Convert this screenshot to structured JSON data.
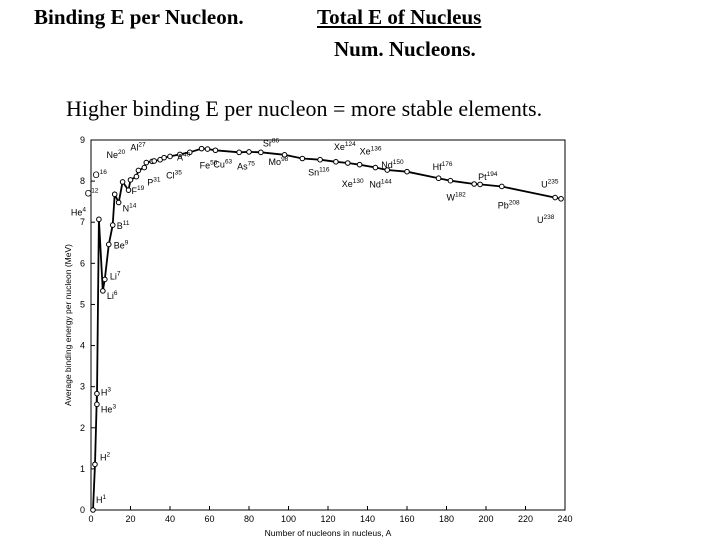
{
  "header": {
    "title_left": "Binding E per Nucleon.",
    "title_right_numerator": "Total E of Nucleus",
    "title_right_denominator": "Num. Nucleons."
  },
  "subtitle": "Higher binding E per nucleon = more stable elements.",
  "chart_data": {
    "type": "line",
    "xlabel": "Number of nucleons in nucleus, A",
    "ylabel": "Average binding energy per nucleon (MeV)",
    "xlim": [
      0,
      240
    ],
    "ylim": [
      0,
      9
    ],
    "xticks": [
      0,
      20,
      40,
      60,
      80,
      100,
      120,
      140,
      160,
      180,
      200,
      220,
      240
    ],
    "yticks": [
      0,
      1,
      2,
      3,
      4,
      5,
      6,
      7,
      8,
      9
    ],
    "grid": false,
    "series": [
      {
        "points": [
          {
            "x": 1,
            "y": 0
          },
          {
            "x": 2,
            "y": 1.11
          },
          {
            "x": 3,
            "y": 2.83
          },
          {
            "x": 3,
            "y": 2.57
          },
          {
            "x": 4,
            "y": 7.07
          },
          {
            "x": 6,
            "y": 5.33
          },
          {
            "x": 7,
            "y": 5.61
          },
          {
            "x": 9,
            "y": 6.46
          },
          {
            "x": 11,
            "y": 6.93
          },
          {
            "x": 12,
            "y": 7.68
          },
          {
            "x": 14,
            "y": 7.48
          },
          {
            "x": 16,
            "y": 7.98
          },
          {
            "x": 19,
            "y": 7.78
          },
          {
            "x": 20,
            "y": 8.03
          },
          {
            "x": 23,
            "y": 8.11
          },
          {
            "x": 24,
            "y": 8.26
          },
          {
            "x": 27,
            "y": 8.33
          },
          {
            "x": 28,
            "y": 8.45
          },
          {
            "x": 31,
            "y": 8.48
          },
          {
            "x": 32,
            "y": 8.49
          },
          {
            "x": 35,
            "y": 8.52
          },
          {
            "x": 37,
            "y": 8.57
          },
          {
            "x": 40,
            "y": 8.6
          },
          {
            "x": 45,
            "y": 8.65
          },
          {
            "x": 50,
            "y": 8.7
          },
          {
            "x": 56,
            "y": 8.79
          },
          {
            "x": 59,
            "y": 8.78
          },
          {
            "x": 63,
            "y": 8.75
          },
          {
            "x": 75,
            "y": 8.7
          },
          {
            "x": 80,
            "y": 8.71
          },
          {
            "x": 86,
            "y": 8.7
          },
          {
            "x": 98,
            "y": 8.64
          },
          {
            "x": 107,
            "y": 8.55
          },
          {
            "x": 116,
            "y": 8.52
          },
          {
            "x": 124,
            "y": 8.47
          },
          {
            "x": 130,
            "y": 8.44
          },
          {
            "x": 136,
            "y": 8.4
          },
          {
            "x": 144,
            "y": 8.33
          },
          {
            "x": 150,
            "y": 8.27
          },
          {
            "x": 160,
            "y": 8.23
          },
          {
            "x": 176,
            "y": 8.07
          },
          {
            "x": 182,
            "y": 8.01
          },
          {
            "x": 194,
            "y": 7.93
          },
          {
            "x": 197,
            "y": 7.92
          },
          {
            "x": 208,
            "y": 7.87
          },
          {
            "x": 235,
            "y": 7.6
          },
          {
            "x": 238,
            "y": 7.57
          }
        ]
      }
    ],
    "annotations": [
      {
        "el": "H",
        "a": "1",
        "x": 1,
        "y": 0,
        "dx": 3,
        "dy": -7
      },
      {
        "el": "H",
        "a": "2",
        "x": 2,
        "y": 1.11,
        "dx": 5,
        "dy": -4
      },
      {
        "el": "H",
        "a": "3",
        "x": 3,
        "y": 2.83,
        "dx": 4,
        "dy": 2
      },
      {
        "el": "He",
        "a": "3",
        "x": 3,
        "y": 2.57,
        "dx": 4,
        "dy": 8
      },
      {
        "el": "He",
        "a": "4",
        "x": 4,
        "y": 7.07,
        "dx": -28,
        "dy": -4
      },
      {
        "el": "Li",
        "a": "6",
        "x": 6,
        "y": 5.33,
        "dx": 4,
        "dy": 8
      },
      {
        "el": "Li",
        "a": "7",
        "x": 7,
        "y": 5.61,
        "dx": 5,
        "dy": 0
      },
      {
        "el": "Be",
        "a": "9",
        "x": 9,
        "y": 6.46,
        "dx": 5,
        "dy": 4
      },
      {
        "el": "B",
        "a": "11",
        "x": 11,
        "y": 6.93,
        "dx": 4,
        "dy": 4
      },
      {
        "el": "C",
        "a": "12",
        "x": 12,
        "y": 7.68,
        "dx": -30,
        "dy": 2
      },
      {
        "el": "N",
        "a": "14",
        "x": 14,
        "y": 7.48,
        "dx": 4,
        "dy": 9
      },
      {
        "el": "O",
        "a": "16",
        "x": 16,
        "y": 7.98,
        "dx": -30,
        "dy": -4
      },
      {
        "el": "F",
        "a": "19",
        "x": 19,
        "y": 7.78,
        "dx": 3,
        "dy": 4
      },
      {
        "el": "Ne",
        "a": "20",
        "x": 20,
        "y": 8.03,
        "dx": -24,
        "dy": -22
      },
      {
        "el": "Al",
        "a": "27",
        "x": 27,
        "y": 8.33,
        "dx": -14,
        "dy": -17
      },
      {
        "el": "P",
        "a": "31",
        "x": 31,
        "y": 8.48,
        "dx": -5,
        "dy": 24
      },
      {
        "el": "Cl",
        "a": "35",
        "x": 35,
        "y": 8.52,
        "dx": 6,
        "dy": 19
      },
      {
        "el": "A",
        "a": "40",
        "x": 40,
        "y": 8.6,
        "dx": 7,
        "dy": 4
      },
      {
        "el": "Fe",
        "a": "56",
        "x": 56,
        "y": 8.79,
        "dx": -2,
        "dy": 20
      },
      {
        "el": "Cu",
        "a": "63",
        "x": 63,
        "y": 8.75,
        "dx": -2,
        "dy": 17
      },
      {
        "el": "As",
        "a": "75",
        "x": 75,
        "y": 8.7,
        "dx": -2,
        "dy": 17
      },
      {
        "el": "Sr",
        "a": "86",
        "x": 86,
        "y": 8.7,
        "dx": 2,
        "dy": -6
      },
      {
        "el": "Mo",
        "a": "98",
        "x": 98,
        "y": 8.64,
        "dx": -16,
        "dy": 10
      },
      {
        "el": "Sn",
        "a": "116",
        "x": 116,
        "y": 8.52,
        "dx": -12,
        "dy": 16
      },
      {
        "el": "Xe",
        "a": "124",
        "x": 124,
        "y": 8.47,
        "dx": -2,
        "dy": -12
      },
      {
        "el": "Xe",
        "a": "130",
        "x": 130,
        "y": 8.44,
        "dx": -6,
        "dy": 24
      },
      {
        "el": "Xe",
        "a": "136",
        "x": 136,
        "y": 8.4,
        "dx": 0,
        "dy": -10
      },
      {
        "el": "Nd",
        "a": "144",
        "x": 144,
        "y": 8.33,
        "dx": -6,
        "dy": 20
      },
      {
        "el": "Nd",
        "a": "150",
        "x": 150,
        "y": 8.27,
        "dx": -6,
        "dy": -2
      },
      {
        "el": "Hf",
        "a": "176",
        "x": 176,
        "y": 8.07,
        "dx": -6,
        "dy": -8
      },
      {
        "el": "W",
        "a": "182",
        "x": 182,
        "y": 8.01,
        "dx": -4,
        "dy": 20
      },
      {
        "el": "Pt",
        "a": "194",
        "x": 194,
        "y": 7.93,
        "dx": 4,
        "dy": -4
      },
      {
        "el": "Pb",
        "a": "208",
        "x": 208,
        "y": 7.87,
        "dx": -4,
        "dy": 22
      },
      {
        "el": "U",
        "a": "235",
        "x": 235,
        "y": 7.6,
        "dx": -14,
        "dy": -10
      },
      {
        "el": "U",
        "a": "238",
        "x": 238,
        "y": 7.57,
        "dx": -24,
        "dy": 24
      }
    ]
  }
}
